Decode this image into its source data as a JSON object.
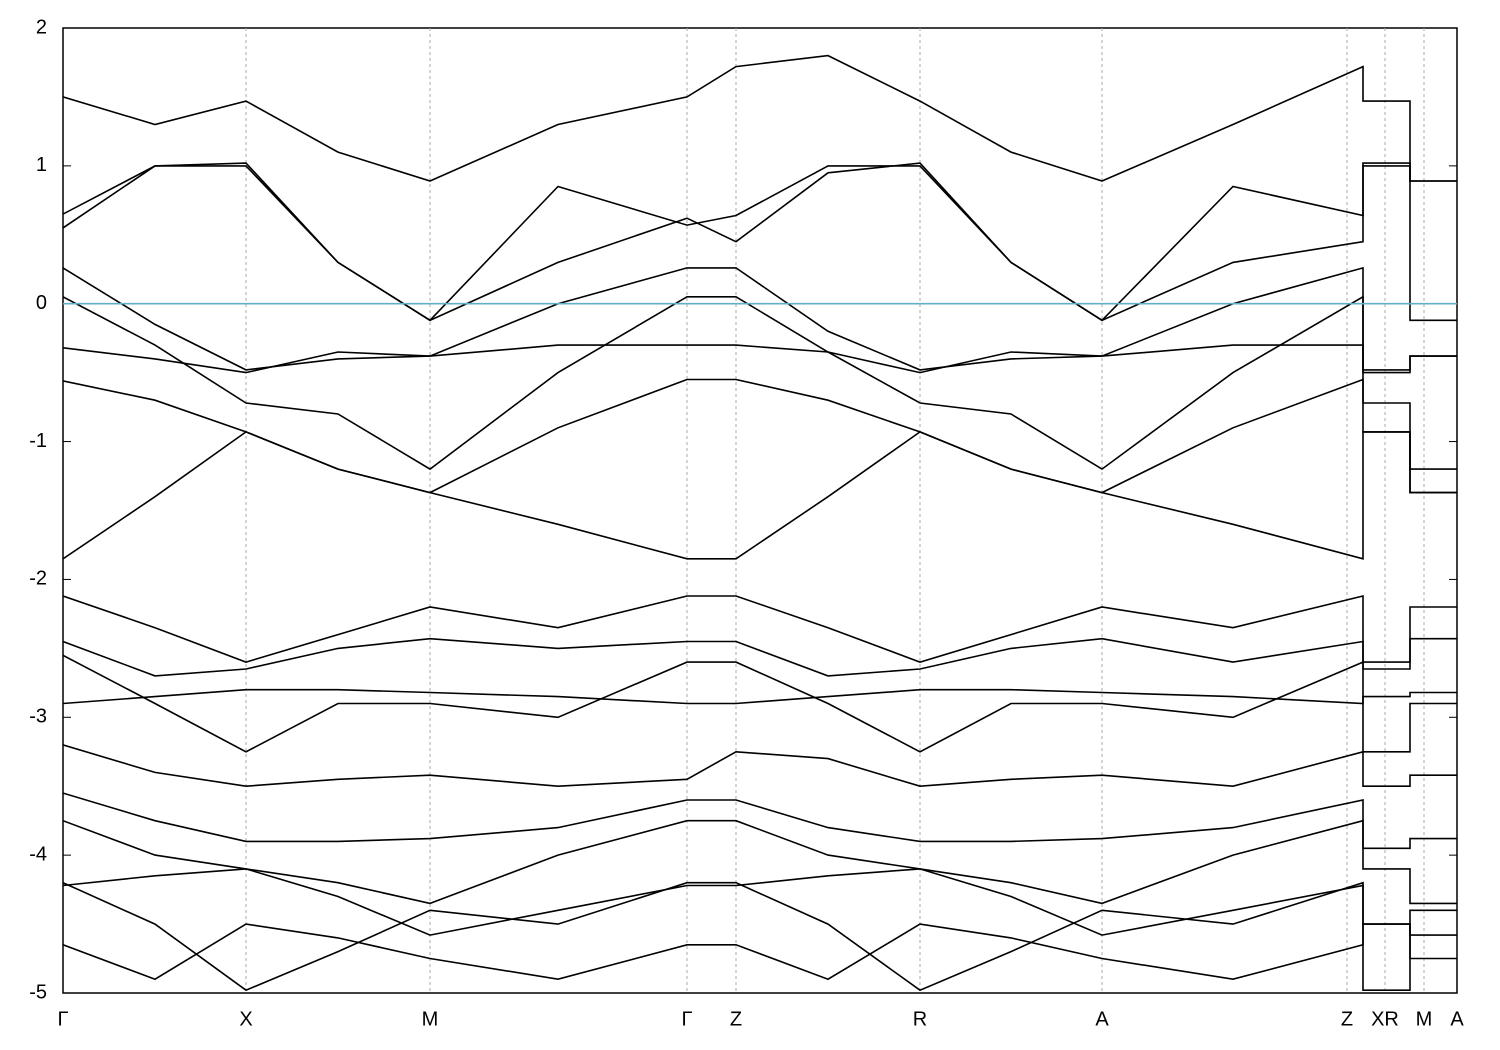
{
  "chart_data": {
    "type": "line",
    "x": [
      0,
      92,
      183,
      275,
      367,
      495,
      624,
      673,
      765,
      857,
      948,
      1039,
      1170,
      1300,
      1300,
      1347,
      1347,
      1394
    ],
    "xlim": [
      0,
      1394
    ],
    "xticks": [
      {
        "value": 0,
        "label": "Γ"
      },
      {
        "value": 183,
        "label": "X"
      },
      {
        "value": 367,
        "label": "M"
      },
      {
        "value": 624,
        "label": "Γ"
      },
      {
        "value": 673,
        "label": "Z"
      },
      {
        "value": 857,
        "label": "R"
      },
      {
        "value": 1039,
        "label": "A"
      },
      {
        "value": 1284,
        "label": "Z"
      },
      {
        "value": 1322,
        "label": "XR"
      },
      {
        "value": 1361,
        "label": "M"
      },
      {
        "value": 1394,
        "label": "A"
      }
    ],
    "ylim": [
      -5,
      2
    ],
    "yticks": [
      -5,
      -4,
      -3,
      -2,
      -1,
      0,
      1,
      2
    ],
    "grid": true,
    "fermi_level": 0,
    "fermi_color": "#5fb0c9",
    "color": "#000000",
    "series": [
      {
        "values": [
          1.5,
          1.3,
          1.47,
          1.1,
          0.89,
          1.3,
          1.5,
          1.72,
          1.8,
          1.47,
          1.1,
          0.89,
          1.3,
          1.72,
          1.47,
          1.47,
          0.89,
          0.89
        ]
      },
      {
        "values": [
          0.65,
          1.0,
          1.02,
          0.3,
          -0.12,
          0.3,
          0.62,
          0.45,
          0.95,
          1.02,
          0.3,
          -0.12,
          0.3,
          0.45,
          1.02,
          1.02,
          -0.12,
          -0.12
        ]
      },
      {
        "values": [
          0.55,
          1.0,
          1.0,
          0.3,
          -0.12,
          0.85,
          0.57,
          0.64,
          1.0,
          1.0,
          0.3,
          -0.12,
          0.85,
          0.64,
          1.0,
          1.0,
          0.89,
          0.89
        ]
      },
      {
        "values": [
          0.26,
          -0.15,
          -0.48,
          -0.4,
          -0.38,
          0.0,
          0.26,
          0.26,
          -0.2,
          -0.48,
          -0.4,
          -0.38,
          0.0,
          0.26,
          -0.48,
          -0.48,
          -0.38,
          -0.38
        ]
      },
      {
        "values": [
          0.05,
          -0.3,
          -0.72,
          -0.8,
          -1.2,
          -0.5,
          0.05,
          0.05,
          -0.35,
          -0.72,
          -0.8,
          -1.2,
          -0.5,
          0.05,
          -0.72,
          -0.72,
          -1.2,
          -1.2
        ]
      },
      {
        "values": [
          -0.32,
          -0.4,
          -0.5,
          -0.35,
          -0.38,
          -0.3,
          -0.3,
          -0.3,
          -0.35,
          -0.5,
          -0.35,
          -0.38,
          -0.3,
          -0.3,
          -0.5,
          -0.5,
          -0.38,
          -0.38
        ]
      },
      {
        "values": [
          -0.56,
          -0.7,
          -0.93,
          -1.2,
          -1.37,
          -0.9,
          -0.55,
          -0.55,
          -0.7,
          -0.93,
          -1.2,
          -1.37,
          -0.9,
          -0.55,
          -0.93,
          -0.93,
          -1.37,
          -1.37
        ]
      },
      {
        "values": [
          -1.85,
          -1.4,
          -0.93,
          -1.2,
          -1.37,
          -1.6,
          -1.85,
          -1.85,
          -1.4,
          -0.93,
          -1.2,
          -1.37,
          -1.6,
          -1.85,
          -0.93,
          -0.93,
          -1.37,
          -1.37
        ]
      },
      {
        "values": [
          -2.12,
          -2.35,
          -2.6,
          -2.4,
          -2.2,
          -2.35,
          -2.12,
          -2.12,
          -2.35,
          -2.6,
          -2.4,
          -2.2,
          -2.35,
          -2.12,
          -2.6,
          -2.6,
          -2.2,
          -2.2
        ]
      },
      {
        "values": [
          -2.45,
          -2.7,
          -2.65,
          -2.5,
          -2.43,
          -2.5,
          -2.45,
          -2.45,
          -2.7,
          -2.65,
          -2.5,
          -2.43,
          -2.6,
          -2.45,
          -2.65,
          -2.65,
          -2.43,
          -2.43
        ]
      },
      {
        "values": [
          -2.9,
          -2.85,
          -2.8,
          -2.8,
          -2.82,
          -2.85,
          -2.9,
          -2.9,
          -2.85,
          -2.8,
          -2.8,
          -2.82,
          -2.85,
          -2.9,
          -2.85,
          -2.85,
          -2.82,
          -2.82
        ]
      },
      {
        "values": [
          -2.55,
          -2.9,
          -3.25,
          -2.9,
          -2.9,
          -3.0,
          -2.6,
          -2.6,
          -2.9,
          -3.25,
          -2.9,
          -2.9,
          -3.0,
          -2.6,
          -3.25,
          -3.25,
          -2.9,
          -2.9
        ]
      },
      {
        "values": [
          -3.2,
          -3.4,
          -3.5,
          -3.45,
          -3.42,
          -3.5,
          -3.45,
          -3.25,
          -3.3,
          -3.5,
          -3.45,
          -3.42,
          -3.5,
          -3.25,
          -3.5,
          -3.5,
          -3.42,
          -3.42
        ]
      },
      {
        "values": [
          -3.55,
          -3.75,
          -3.9,
          -3.9,
          -3.88,
          -3.8,
          -3.6,
          -3.6,
          -3.8,
          -3.9,
          -3.9,
          -3.88,
          -3.8,
          -3.6,
          -3.95,
          -3.95,
          -3.88,
          -3.88
        ]
      },
      {
        "values": [
          -3.75,
          -4.0,
          -4.1,
          -4.2,
          -4.35,
          -4.0,
          -3.75,
          -3.75,
          -4.0,
          -4.1,
          -4.2,
          -4.35,
          -4.0,
          -3.75,
          -4.1,
          -4.1,
          -4.35,
          -4.35
        ]
      },
      {
        "values": [
          -4.22,
          -4.15,
          -4.1,
          -4.3,
          -4.58,
          -4.4,
          -4.22,
          -4.22,
          -4.15,
          -4.1,
          -4.3,
          -4.58,
          -4.4,
          -4.22,
          -4.5,
          -4.5,
          -4.58,
          -4.58
        ]
      },
      {
        "values": [
          -4.65,
          -4.9,
          -4.5,
          -4.6,
          -4.75,
          -4.9,
          -4.65,
          -4.65,
          -4.9,
          -4.5,
          -4.6,
          -4.75,
          -4.9,
          -4.65,
          -4.5,
          -4.5,
          -4.75,
          -4.75
        ]
      },
      {
        "values": [
          -4.2,
          -4.5,
          -4.98,
          -4.7,
          -4.4,
          -4.5,
          -4.2,
          -4.2,
          -4.5,
          -4.98,
          -4.7,
          -4.4,
          -4.5,
          -4.2,
          -4.98,
          -4.98,
          -4.4,
          -4.4
        ]
      }
    ]
  }
}
